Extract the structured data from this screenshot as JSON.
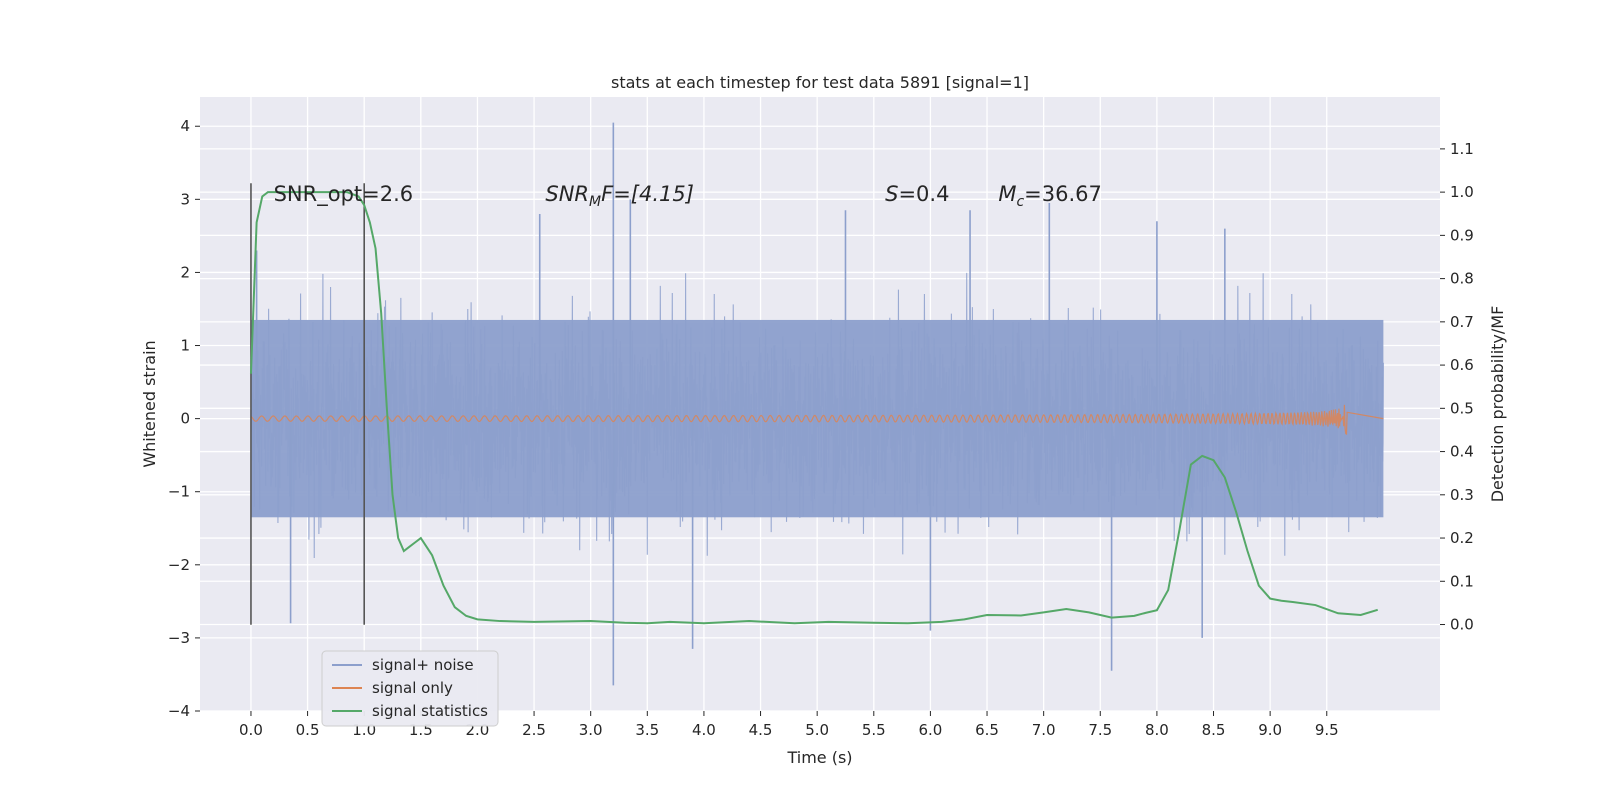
{
  "chart_data": {
    "type": "line",
    "title": "stats at each timestep for test data 5891 [signal=1]",
    "xlabel": "Time (s)",
    "ylabel": "Whitened strain",
    "y2label": "Detection probability/MF",
    "xlim": [
      -0.45,
      10.5
    ],
    "ylim": [
      -4.0,
      4.4
    ],
    "y2lim": [
      -0.2,
      1.22
    ],
    "x_ticks": [
      0.0,
      0.5,
      1.0,
      1.5,
      2.0,
      2.5,
      3.0,
      3.5,
      4.0,
      4.5,
      5.0,
      5.5,
      6.0,
      6.5,
      7.0,
      7.5,
      8.0,
      8.5,
      9.0,
      9.5
    ],
    "x_tick_labels": [
      "0.0",
      "0.5",
      "1.0",
      "1.5",
      "2.0",
      "2.5",
      "3.0",
      "3.5",
      "4.0",
      "4.5",
      "5.0",
      "5.5",
      "6.0",
      "6.5",
      "7.0",
      "7.5",
      "8.0",
      "8.5",
      "9.0",
      "9.5"
    ],
    "y_ticks": [
      -4,
      -3,
      -2,
      -1,
      0,
      1,
      2,
      3,
      4
    ],
    "y_tick_labels": [
      "−4",
      "−3",
      "−2",
      "−1",
      "0",
      "1",
      "2",
      "3",
      "4"
    ],
    "y2_ticks": [
      0.0,
      0.1,
      0.2,
      0.3,
      0.4,
      0.5,
      0.6,
      0.7,
      0.8,
      0.9,
      1.0,
      1.1
    ],
    "y2_tick_labels": [
      "0.0",
      "0.1",
      "0.2",
      "0.3",
      "0.4",
      "0.5",
      "0.6",
      "0.7",
      "0.8",
      "0.9",
      "1.0",
      "1.1"
    ],
    "grid": true,
    "legend_position": "bottom-left",
    "legend": [
      "signal+ noise",
      "signal only",
      "signal statistics"
    ],
    "colors": {
      "noise": "#8c9fcc",
      "signal": "#dd8452",
      "stats": "#55a868",
      "background": "#eaeaf2",
      "grid": "#ffffff",
      "vline": "#555555"
    },
    "annotations": {
      "snr_opt": "SNR_opt=2.6",
      "snr_mf_main": "SNR",
      "snr_mf_sub": "M",
      "snr_mf_rest": "F=[4.15]",
      "s_main": "S",
      "s_rest": "=0.4",
      "mc_main": "M",
      "mc_sub": "c",
      "mc_rest": "=36.67"
    },
    "window_lines": {
      "x": [
        0.0,
        1.0
      ],
      "y_range": [
        -2.82,
        3.22
      ]
    },
    "noise_series": {
      "name": "signal+ noise",
      "x_range": [
        0.0,
        10.0
      ],
      "envelope": 1.35,
      "spikes": [
        {
          "x": 3.2,
          "y": 4.05
        },
        {
          "x": 3.2,
          "y": -3.65
        },
        {
          "x": 7.6,
          "y": -3.45
        },
        {
          "x": 3.9,
          "y": -3.15
        },
        {
          "x": 7.05,
          "y": 2.95
        },
        {
          "x": 0.05,
          "y": 2.3
        },
        {
          "x": 6.35,
          "y": 2.85
        },
        {
          "x": 3.35,
          "y": 3.0
        },
        {
          "x": 2.55,
          "y": 2.8
        },
        {
          "x": 5.25,
          "y": 2.85
        },
        {
          "x": 8.0,
          "y": 2.7
        },
        {
          "x": 8.6,
          "y": 2.6
        },
        {
          "x": 0.35,
          "y": -2.8
        },
        {
          "x": 8.4,
          "y": -3.0
        },
        {
          "x": 6.0,
          "y": -2.9
        }
      ]
    },
    "signal_series": {
      "name": "signal only",
      "chirp_end": 9.68,
      "peak_amplitude": 0.58
    },
    "stats_series": {
      "name": "signal statistics",
      "x": [
        0.0,
        0.05,
        0.1,
        0.15,
        0.2,
        0.3,
        0.5,
        0.7,
        0.85,
        0.95,
        1.0,
        1.05,
        1.1,
        1.15,
        1.2,
        1.25,
        1.3,
        1.35,
        1.4,
        1.45,
        1.5,
        1.55,
        1.6,
        1.7,
        1.8,
        1.9,
        2.0,
        2.2,
        2.5,
        3.0,
        3.3,
        3.5,
        3.7,
        4.0,
        4.4,
        4.8,
        5.1,
        5.5,
        5.8,
        6.1,
        6.3,
        6.5,
        6.8,
        7.0,
        7.2,
        7.4,
        7.6,
        7.8,
        7.9,
        8.0,
        8.1,
        8.2,
        8.3,
        8.4,
        8.5,
        8.6,
        8.7,
        8.8,
        8.9,
        9.0,
        9.1,
        9.2,
        9.4,
        9.6,
        9.8,
        9.95
      ],
      "y": [
        0.58,
        0.93,
        0.99,
        1.0,
        1.0,
        1.0,
        1.0,
        1.0,
        1.0,
        0.99,
        0.97,
        0.93,
        0.87,
        0.72,
        0.5,
        0.3,
        0.2,
        0.17,
        0.18,
        0.19,
        0.2,
        0.18,
        0.16,
        0.09,
        0.04,
        0.02,
        0.012,
        0.008,
        0.006,
        0.008,
        0.004,
        0.003,
        0.006,
        0.003,
        0.008,
        0.003,
        0.006,
        0.004,
        0.003,
        0.006,
        0.012,
        0.022,
        0.021,
        0.028,
        0.036,
        0.028,
        0.016,
        0.02,
        0.027,
        0.033,
        0.08,
        0.22,
        0.37,
        0.39,
        0.38,
        0.34,
        0.26,
        0.17,
        0.09,
        0.06,
        0.055,
        0.052,
        0.045,
        0.026,
        0.022,
        0.034
      ]
    }
  }
}
